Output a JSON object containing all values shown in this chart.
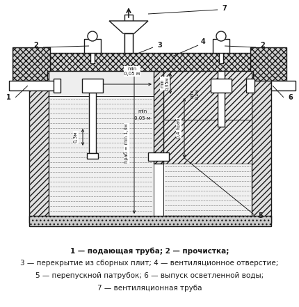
{
  "bg_color": "#ffffff",
  "lc": "#1a1a1a",
  "caption_lines": [
    "1 — подающая труба; 2 — прочистка;",
    "3 — перекрытие из сборных плит; 4 — вентиляционное отверстие;",
    "5 — перепускной патрубок; 6 — выпуск осветленной воды;",
    "7 — вентиляционная труба"
  ]
}
